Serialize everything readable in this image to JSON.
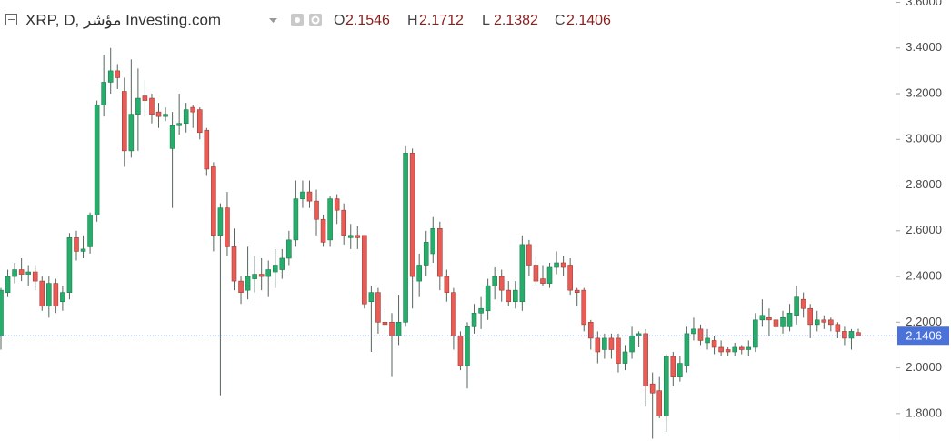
{
  "chart_data": {
    "type": "candlestick",
    "title": "XRP, D, مؤشر Investing.com",
    "ohlc_labels": [
      "O",
      "H",
      "L",
      "C"
    ],
    "up_color": "#27ad6b",
    "down_color": "#e85c55",
    "wick_color": "#55665c",
    "last_price_color": "#4a72d9",
    "ylim": [
      1.68,
      3.61
    ],
    "yticks": [
      {
        "value": 3.6,
        "label": "3.6000"
      },
      {
        "value": 3.4,
        "label": "3.4000"
      },
      {
        "value": 3.2,
        "label": "3.2000"
      },
      {
        "value": 3.0,
        "label": "3.0000"
      },
      {
        "value": 2.8,
        "label": "2.8000"
      },
      {
        "value": 2.6,
        "label": "2.6000"
      },
      {
        "value": 2.4,
        "label": "2.4000"
      },
      {
        "value": 2.2,
        "label": "2.2000"
      },
      {
        "value": 2.0,
        "label": "2.0000"
      },
      {
        "value": 1.8,
        "label": "1.8000"
      }
    ],
    "open": [
      2.14,
      2.33,
      2.4,
      2.43,
      2.41,
      2.42,
      2.38,
      2.27,
      2.37,
      2.29,
      2.33,
      2.57,
      2.51,
      2.53,
      2.67,
      3.15,
      3.25,
      3.3,
      3.21,
      2.95,
      3.11,
      3.19,
      3.18,
      3.12,
      3.1,
      2.96,
      3.06,
      3.07,
      3.14,
      3.13,
      3.04,
      2.88,
      2.58,
      2.7,
      2.53,
      2.38,
      2.34,
      2.39,
      2.41,
      2.4,
      2.42,
      2.43,
      2.48,
      2.56,
      2.74,
      2.77,
      2.73,
      2.65,
      2.56,
      2.74,
      2.69,
      2.57,
      2.58,
      2.58,
      2.29,
      2.33,
      2.2,
      2.2,
      2.14,
      2.2,
      2.94,
      2.38,
      2.45,
      2.5,
      2.61,
      2.4,
      2.33,
      2.14,
      2.01,
      2.18,
      2.24,
      2.25,
      2.36,
      2.4,
      2.34,
      2.29,
      2.29,
      2.54,
      2.45,
      2.39,
      2.37,
      2.44,
      2.46,
      2.45,
      2.34,
      2.34,
      2.2,
      2.13,
      2.08,
      2.13,
      2.13,
      2.02,
      2.07,
      2.14,
      2.15,
      1.93,
      1.9,
      1.79,
      2.05,
      1.96,
      2.01,
      2.15,
      2.17,
      2.11,
      2.12,
      2.09,
      2.08,
      2.07,
      2.09,
      2.08,
      2.09,
      2.21,
      2.22,
      2.21,
      2.18,
      2.18,
      2.23,
      2.3,
      2.26,
      2.19,
      2.21,
      2.21,
      2.19,
      2.16,
      2.13,
      2.1546
    ],
    "high": [
      2.35,
      2.43,
      2.46,
      2.48,
      2.45,
      2.45,
      2.4,
      2.4,
      2.39,
      2.36,
      2.59,
      2.6,
      2.58,
      2.68,
      3.17,
      3.37,
      3.4,
      3.33,
      3.27,
      3.35,
      3.31,
      3.26,
      3.2,
      3.16,
      3.14,
      3.12,
      3.2,
      3.16,
      3.15,
      3.14,
      3.05,
      2.9,
      2.72,
      2.77,
      2.61,
      2.4,
      2.53,
      2.49,
      2.48,
      2.47,
      2.52,
      2.52,
      2.6,
      2.82,
      2.82,
      2.82,
      2.78,
      2.67,
      2.75,
      2.76,
      2.72,
      2.63,
      2.62,
      2.58,
      2.36,
      2.35,
      2.26,
      2.24,
      2.32,
      2.97,
      2.96,
      2.5,
      2.6,
      2.66,
      2.64,
      2.43,
      2.35,
      2.16,
      2.2,
      2.28,
      2.31,
      2.39,
      2.44,
      2.43,
      2.38,
      2.38,
      2.58,
      2.56,
      2.49,
      2.45,
      2.46,
      2.51,
      2.49,
      2.48,
      2.35,
      2.35,
      2.21,
      2.16,
      2.15,
      2.15,
      2.15,
      2.1,
      2.18,
      2.16,
      2.17,
      1.98,
      1.96,
      2.06,
      2.07,
      2.05,
      2.18,
      2.22,
      2.19,
      2.17,
      2.14,
      2.12,
      2.09,
      2.11,
      2.1,
      2.12,
      2.24,
      2.3,
      2.26,
      2.23,
      2.25,
      2.28,
      2.36,
      2.33,
      2.28,
      2.25,
      2.23,
      2.22,
      2.2,
      2.18,
      2.17,
      2.1712
    ],
    "low": [
      2.08,
      2.31,
      2.37,
      2.38,
      2.36,
      2.34,
      2.25,
      2.22,
      2.24,
      2.25,
      2.3,
      2.47,
      2.48,
      2.5,
      2.64,
      3.1,
      3.2,
      3.22,
      2.88,
      2.92,
      2.95,
      3.1,
      3.07,
      3.05,
      3.08,
      2.7,
      3.02,
      3.03,
      3.05,
      3.0,
      2.84,
      2.51,
      1.88,
      2.49,
      2.34,
      2.28,
      2.3,
      2.33,
      2.34,
      2.31,
      2.35,
      2.39,
      2.45,
      2.53,
      2.7,
      2.7,
      2.58,
      2.53,
      2.53,
      2.63,
      2.54,
      2.52,
      2.52,
      2.26,
      2.07,
      2.15,
      2.15,
      1.96,
      2.1,
      2.18,
      2.26,
      2.31,
      2.4,
      2.46,
      2.34,
      2.29,
      2.08,
      1.99,
      1.91,
      2.15,
      2.17,
      2.21,
      2.3,
      2.29,
      2.27,
      2.26,
      2.25,
      2.4,
      2.36,
      2.36,
      2.35,
      2.41,
      2.4,
      2.32,
      2.27,
      2.16,
      2.08,
      2.02,
      2.04,
      2.04,
      1.98,
      1.99,
      2.04,
      2.09,
      1.83,
      1.69,
      1.78,
      1.72,
      1.92,
      1.94,
      1.98,
      2.12,
      2.1,
      2.08,
      2.06,
      2.05,
      2.05,
      2.05,
      2.06,
      2.05,
      2.07,
      2.18,
      2.14,
      2.16,
      2.15,
      2.16,
      2.19,
      2.22,
      2.13,
      2.16,
      2.17,
      2.16,
      2.13,
      2.1,
      2.08,
      2.1382
    ],
    "close": [
      2.34,
      2.4,
      2.43,
      2.41,
      2.42,
      2.38,
      2.27,
      2.37,
      2.27,
      2.33,
      2.57,
      2.51,
      2.52,
      2.67,
      3.15,
      3.25,
      3.3,
      3.27,
      2.95,
      3.11,
      3.18,
      3.17,
      3.11,
      3.1,
      3.11,
      3.06,
      3.07,
      3.13,
      3.12,
      3.03,
      2.87,
      2.58,
      2.7,
      2.53,
      2.38,
      2.33,
      2.4,
      2.41,
      2.4,
      2.43,
      2.45,
      2.48,
      2.56,
      2.74,
      2.77,
      2.73,
      2.65,
      2.55,
      2.74,
      2.69,
      2.58,
      2.58,
      2.57,
      2.28,
      2.33,
      2.2,
      2.19,
      2.14,
      2.2,
      2.94,
      2.4,
      2.45,
      2.55,
      2.61,
      2.4,
      2.33,
      2.14,
      2.01,
      2.18,
      2.24,
      2.26,
      2.36,
      2.4,
      2.34,
      2.29,
      2.34,
      2.54,
      2.45,
      2.38,
      2.37,
      2.44,
      2.46,
      2.44,
      2.34,
      2.33,
      2.19,
      2.13,
      2.07,
      2.13,
      2.08,
      2.02,
      2.07,
      2.14,
      2.15,
      1.92,
      1.89,
      1.79,
      2.05,
      1.96,
      2.02,
      2.15,
      2.17,
      2.12,
      2.13,
      2.09,
      2.07,
      2.07,
      2.09,
      2.08,
      2.09,
      2.21,
      2.23,
      2.21,
      2.18,
      2.22,
      2.24,
      2.31,
      2.26,
      2.19,
      2.21,
      2.2,
      2.19,
      2.16,
      2.13,
      2.16,
      2.1406
    ]
  }
}
